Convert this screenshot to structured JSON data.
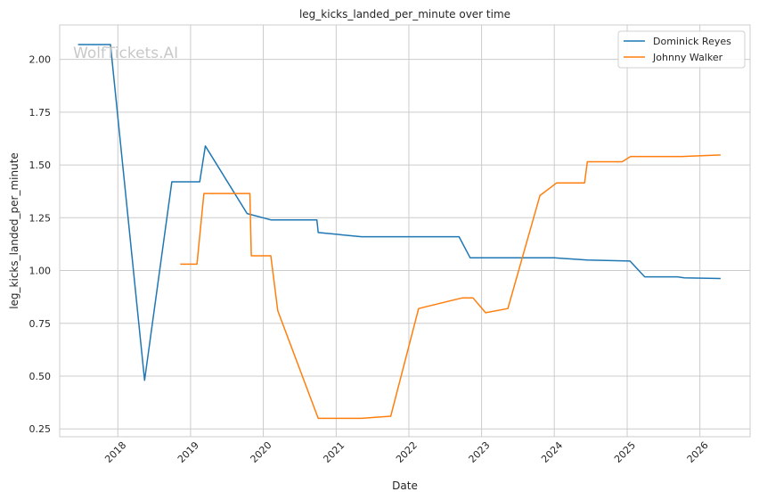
{
  "chart_data": {
    "type": "line",
    "title": "leg_kicks_landed_per_minute over time",
    "xlabel": "Date",
    "ylabel": "leg_kicks_landed_per_minute",
    "watermark": "WolfTickets.AI",
    "xlim": [
      "2017-03-15",
      "2026-09-10"
    ],
    "ylim": [
      0.213,
      2.163
    ],
    "x_ticks": [
      "2018",
      "2019",
      "2020",
      "2021",
      "2022",
      "2023",
      "2024",
      "2025",
      "2026"
    ],
    "y_ticks": [
      "0.25",
      "0.50",
      "0.75",
      "1.00",
      "1.25",
      "1.50",
      "1.75",
      "2.00"
    ],
    "grid": true,
    "legend_position": "top-right",
    "series": [
      {
        "name": "Dominick Reyes",
        "color": "#1f77b4",
        "points": [
          [
            "2017-06-15",
            2.07
          ],
          [
            "2017-11-25",
            2.07
          ],
          [
            "2018-05-15",
            0.48
          ],
          [
            "2018-09-29",
            1.42
          ],
          [
            "2019-02-16",
            1.42
          ],
          [
            "2019-03-16",
            1.59
          ],
          [
            "2019-10-12",
            1.27
          ],
          [
            "2020-02-08",
            1.24
          ],
          [
            "2020-09-26",
            1.24
          ],
          [
            "2020-10-03",
            1.18
          ],
          [
            "2021-05-08",
            1.16
          ],
          [
            "2022-09-10",
            1.16
          ],
          [
            "2022-11-05",
            1.06
          ],
          [
            "2024-01-01",
            1.06
          ],
          [
            "2024-06-15",
            1.05
          ],
          [
            "2025-01-15",
            1.045
          ],
          [
            "2025-03-30",
            0.97
          ],
          [
            "2025-09-10",
            0.97
          ],
          [
            "2025-10-15",
            0.965
          ],
          [
            "2026-04-15",
            0.962
          ]
        ]
      },
      {
        "name": "Johnny Walker",
        "color": "#ff7f0e",
        "points": [
          [
            "2018-11-10",
            1.03
          ],
          [
            "2019-02-02",
            1.03
          ],
          [
            "2019-03-09",
            1.365
          ],
          [
            "2019-10-26",
            1.365
          ],
          [
            "2019-11-02",
            1.07
          ],
          [
            "2020-02-08",
            1.07
          ],
          [
            "2020-03-14",
            0.81
          ],
          [
            "2020-10-03",
            0.3
          ],
          [
            "2021-05-08",
            0.3
          ],
          [
            "2021-10-02",
            0.31
          ],
          [
            "2022-02-19",
            0.82
          ],
          [
            "2022-09-25",
            0.87
          ],
          [
            "2022-11-19",
            0.87
          ],
          [
            "2023-01-21",
            0.8
          ],
          [
            "2023-05-13",
            0.82
          ],
          [
            "2023-10-21",
            1.355
          ],
          [
            "2024-01-13",
            1.415
          ],
          [
            "2024-06-01",
            1.415
          ],
          [
            "2024-06-15",
            1.515
          ],
          [
            "2024-12-07",
            1.515
          ],
          [
            "2025-01-18",
            1.54
          ],
          [
            "2025-10-01",
            1.54
          ],
          [
            "2026-04-15",
            1.547
          ]
        ]
      }
    ]
  }
}
